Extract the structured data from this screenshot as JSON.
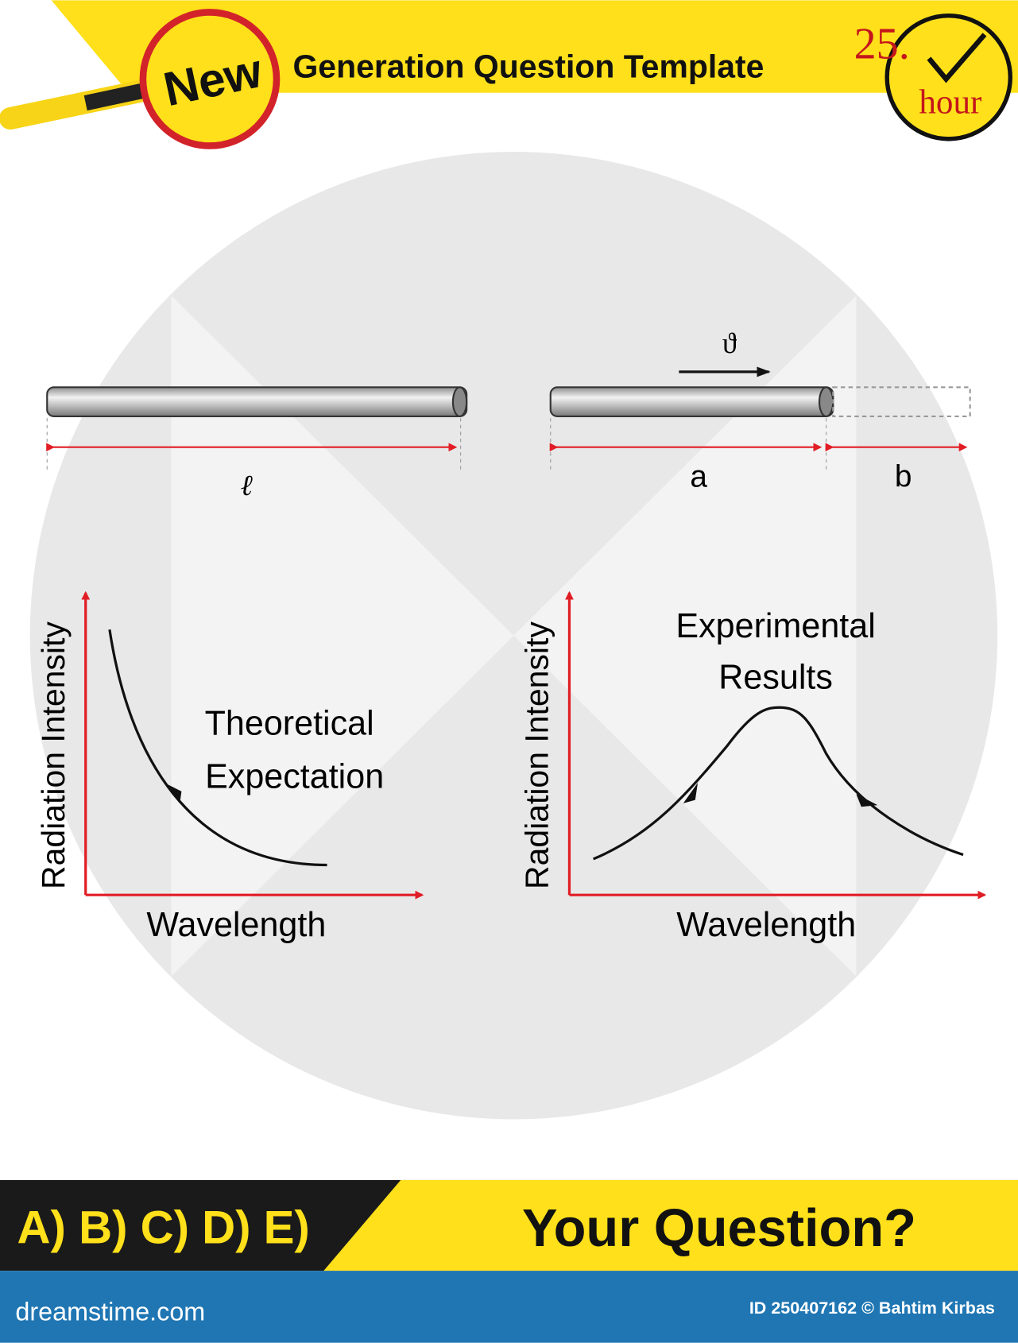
{
  "header": {
    "badge": "New",
    "title": "Generation Question Template",
    "clock_number": "25.",
    "clock_unit": "hour"
  },
  "rods": {
    "velocity": "ϑ",
    "left_length": "ℓ",
    "segment_a": "a",
    "segment_b": "b"
  },
  "graphs": [
    {
      "y_label": "Radiation Intensity",
      "x_label": "Wavelength",
      "curve_label": [
        "Theoretical",
        "Expectation"
      ]
    },
    {
      "y_label": "Radiation Intensity",
      "x_label": "Wavelength",
      "curve_label": [
        "Experimental",
        "Results"
      ]
    }
  ],
  "answer_bar": {
    "choices": "A) B) C) D) E)",
    "question": "Your Question?"
  },
  "footer": {
    "site": "dreamstime.com",
    "credit": "ID 250407162 © Bahtim Kirbas"
  }
}
